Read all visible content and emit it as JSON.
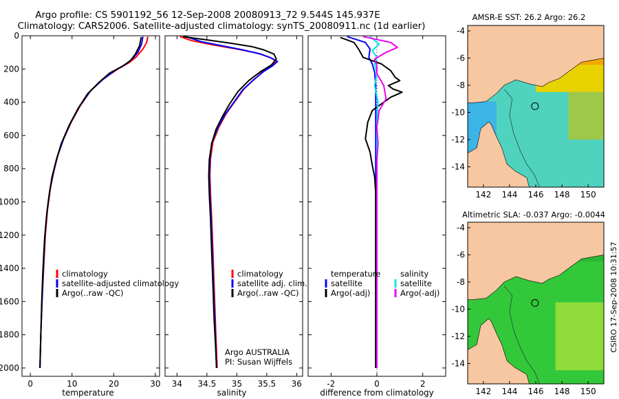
{
  "title_line1": "Argo profile: CS 5901192_56 12-Sep-2008 20080913_72 9.544S 145.937E",
  "title_line2": "Climatology: CARS2006. Satellite-adjusted climatology: synTS_20080911.nc (1d earlier)",
  "credit": "Argo AUSTRALIA",
  "pi": "PI: Susan Wijffels",
  "side_stamp": "CSIRO 17-Sep-2008 10:31:57",
  "colors": {
    "climatology": "#ff0000",
    "satellite": "#0000ff",
    "argo": "#000000",
    "diff_salinity_sat": "#00e5ee",
    "diff_salinity_argo": "#ee00ee",
    "land": "#f7c7a1"
  },
  "chart_data": [
    {
      "type": "line",
      "id": "temperature",
      "xlabel": "temperature",
      "xlim": [
        -2,
        31
      ],
      "xticks": [
        "0",
        "10",
        "20",
        "30"
      ],
      "ylim": [
        2050,
        0
      ],
      "yticks": [
        "0",
        "200",
        "400",
        "600",
        "800",
        "1000",
        "1200",
        "1400",
        "1600",
        "1800",
        "2000"
      ],
      "legend": [
        "climatology",
        "satellite-adjusted climatology",
        "Argo(..raw -QC)"
      ],
      "series": [
        {
          "name": "climatology",
          "color": "#ff0000",
          "points": [
            [
              28.2,
              5
            ],
            [
              27.9,
              40
            ],
            [
              27.0,
              80
            ],
            [
              25.3,
              130
            ],
            [
              23.5,
              165
            ],
            [
              21.0,
              200
            ],
            [
              17.5,
              260
            ],
            [
              14.5,
              330
            ],
            [
              12.0,
              420
            ],
            [
              9.8,
              520
            ],
            [
              8.0,
              620
            ],
            [
              6.6,
              720
            ],
            [
              5.6,
              820
            ],
            [
              4.8,
              920
            ],
            [
              4.1,
              1050
            ],
            [
              3.6,
              1200
            ],
            [
              3.2,
              1400
            ],
            [
              2.8,
              1600
            ],
            [
              2.5,
              1800
            ],
            [
              2.3,
              2000
            ]
          ]
        },
        {
          "name": "satellite-adjusted climatology",
          "color": "#0000ff",
          "points": [
            [
              27.0,
              5
            ],
            [
              26.7,
              50
            ],
            [
              25.8,
              100
            ],
            [
              24.4,
              140
            ],
            [
              23.0,
              170
            ],
            [
              20.5,
              205
            ],
            [
              17.3,
              265
            ],
            [
              14.3,
              335
            ],
            [
              11.8,
              425
            ],
            [
              9.6,
              525
            ],
            [
              7.9,
              625
            ],
            [
              6.5,
              725
            ],
            [
              5.5,
              825
            ],
            [
              4.7,
              925
            ],
            [
              4.0,
              1055
            ],
            [
              3.5,
              1205
            ],
            [
              3.1,
              1405
            ],
            [
              2.8,
              1600
            ],
            [
              2.5,
              1800
            ],
            [
              2.3,
              2000
            ]
          ]
        },
        {
          "name": "Argo(..raw -QC)",
          "color": "#000000",
          "points": [
            [
              26.6,
              8
            ],
            [
              26.2,
              60
            ],
            [
              25.2,
              110
            ],
            [
              24.0,
              150
            ],
            [
              22.0,
              185
            ],
            [
              19.0,
              225
            ],
            [
              16.5,
              280
            ],
            [
              13.7,
              350
            ],
            [
              11.4,
              440
            ],
            [
              9.2,
              545
            ],
            [
              7.4,
              650
            ],
            [
              6.2,
              750
            ],
            [
              5.2,
              850
            ],
            [
              4.5,
              960
            ],
            [
              3.9,
              1080
            ],
            [
              3.4,
              1230
            ],
            [
              3.0,
              1420
            ],
            [
              2.7,
              1620
            ],
            [
              2.5,
              1820
            ],
            [
              2.3,
              2000
            ]
          ]
        }
      ]
    },
    {
      "type": "line",
      "id": "salinity",
      "xlabel": "salinity",
      "xlim": [
        33.8,
        36.1
      ],
      "xticks": [
        "34",
        "34.5",
        "35",
        "35.5",
        "36"
      ],
      "ylim": [
        2050,
        0
      ],
      "legend": [
        "climatology",
        "satellite adj. clim.",
        "Argo(..raw -QC)"
      ],
      "series": [
        {
          "name": "climatology",
          "color": "#ff0000",
          "points": [
            [
              34.05,
              5
            ],
            [
              34.25,
              30
            ],
            [
              34.6,
              55
            ],
            [
              35.0,
              80
            ],
            [
              35.35,
              105
            ],
            [
              35.55,
              130
            ],
            [
              35.65,
              150
            ],
            [
              35.6,
              175
            ],
            [
              35.45,
              210
            ],
            [
              35.3,
              260
            ],
            [
              35.12,
              320
            ],
            [
              34.98,
              390
            ],
            [
              34.82,
              470
            ],
            [
              34.7,
              550
            ],
            [
              34.6,
              640
            ],
            [
              34.56,
              740
            ],
            [
              34.55,
              840
            ],
            [
              34.56,
              950
            ],
            [
              34.58,
              1100
            ],
            [
              34.6,
              1300
            ],
            [
              34.62,
              1500
            ],
            [
              34.64,
              1700
            ],
            [
              34.66,
              1900
            ],
            [
              34.67,
              2000
            ]
          ]
        },
        {
          "name": "satellite adj. clim.",
          "color": "#0000ff",
          "points": [
            [
              34.15,
              5
            ],
            [
              34.4,
              35
            ],
            [
              34.75,
              60
            ],
            [
              35.1,
              85
            ],
            [
              35.4,
              110
            ],
            [
              35.58,
              135
            ],
            [
              35.68,
              155
            ],
            [
              35.6,
              180
            ],
            [
              35.45,
              215
            ],
            [
              35.28,
              265
            ],
            [
              35.1,
              325
            ],
            [
              34.96,
              395
            ],
            [
              34.8,
              475
            ],
            [
              34.68,
              555
            ],
            [
              34.58,
              645
            ],
            [
              34.55,
              745
            ],
            [
              34.54,
              845
            ],
            [
              34.55,
              955
            ],
            [
              34.57,
              1105
            ],
            [
              34.59,
              1305
            ],
            [
              34.61,
              1505
            ],
            [
              34.63,
              1705
            ],
            [
              34.65,
              1905
            ],
            [
              34.66,
              2000
            ]
          ]
        },
        {
          "name": "Argo(..raw -QC)",
          "color": "#000000",
          "points": [
            [
              34.1,
              5
            ],
            [
              34.5,
              25
            ],
            [
              34.9,
              45
            ],
            [
              35.25,
              65
            ],
            [
              35.45,
              85
            ],
            [
              35.62,
              110
            ],
            [
              35.66,
              140
            ],
            [
              35.58,
              175
            ],
            [
              35.4,
              215
            ],
            [
              35.2,
              270
            ],
            [
              35.02,
              335
            ],
            [
              34.88,
              410
            ],
            [
              34.76,
              485
            ],
            [
              34.65,
              565
            ],
            [
              34.58,
              650
            ],
            [
              34.54,
              745
            ],
            [
              34.53,
              845
            ],
            [
              34.54,
              955
            ],
            [
              34.56,
              1105
            ],
            [
              34.58,
              1305
            ],
            [
              34.6,
              1505
            ],
            [
              34.62,
              1705
            ],
            [
              34.65,
              1905
            ],
            [
              34.66,
              2000
            ]
          ]
        }
      ]
    },
    {
      "type": "line",
      "id": "difference",
      "xlabel": "difference from climatology",
      "xlim": [
        -3.0,
        3.0
      ],
      "xticks": [
        "-2",
        "0",
        "2"
      ],
      "ylim": [
        2050,
        0
      ],
      "legend_left": [
        "temperature",
        "satellite",
        "Argo(-adj)"
      ],
      "legend_right": [
        "salinity",
        "satellite",
        "Argo(-adj)"
      ],
      "series": [
        {
          "name": "temperature satellite",
          "color": "#0000ff",
          "width": 2,
          "points": [
            [
              -1.3,
              5
            ],
            [
              -0.5,
              40
            ],
            [
              -0.3,
              80
            ],
            [
              -0.35,
              130
            ],
            [
              -0.2,
              170
            ],
            [
              -0.1,
              220
            ],
            [
              -0.05,
              300
            ],
            [
              -0.05,
              400
            ],
            [
              -0.05,
              500
            ],
            [
              -0.05,
              700
            ],
            [
              -0.05,
              900
            ],
            [
              -0.05,
              1100
            ],
            [
              -0.05,
              1300
            ],
            [
              -0.05,
              1500
            ],
            [
              -0.05,
              1700
            ],
            [
              -0.05,
              1900
            ],
            [
              -0.05,
              2000
            ]
          ]
        },
        {
          "name": "temperature Argo(-adj)",
          "color": "#000000",
          "width": 2,
          "points": [
            [
              -1.6,
              10
            ],
            [
              -1.0,
              40
            ],
            [
              -0.8,
              80
            ],
            [
              -0.6,
              130
            ],
            [
              0.2,
              170
            ],
            [
              0.6,
              210
            ],
            [
              0.8,
              250
            ],
            [
              1.0,
              270
            ],
            [
              0.5,
              300
            ],
            [
              0.7,
              320
            ],
            [
              1.1,
              340
            ],
            [
              0.6,
              370
            ],
            [
              0.3,
              400
            ],
            [
              -0.2,
              450
            ],
            [
              -0.4,
              520
            ],
            [
              -0.5,
              620
            ],
            [
              -0.3,
              700
            ],
            [
              -0.2,
              780
            ],
            [
              -0.1,
              850
            ],
            [
              -0.05,
              950
            ],
            [
              -0.05,
              1100
            ],
            [
              -0.05,
              1300
            ],
            [
              -0.05,
              1500
            ],
            [
              -0.05,
              1700
            ],
            [
              -0.05,
              1900
            ],
            [
              -0.05,
              2000
            ]
          ]
        },
        {
          "name": "salinity satellite",
          "color": "#00e5ee",
          "width": 2,
          "points": [
            [
              -0.3,
              5
            ],
            [
              0.1,
              50
            ],
            [
              -0.2,
              90
            ],
            [
              0.0,
              130
            ],
            [
              -0.1,
              170
            ],
            [
              0.0,
              230
            ],
            [
              -0.1,
              300
            ],
            [
              0.05,
              400
            ],
            [
              0.0,
              500
            ],
            [
              0.0,
              700
            ],
            [
              0.0,
              900
            ],
            [
              0.0,
              1100
            ],
            [
              0.0,
              1300
            ],
            [
              0.0,
              1500
            ],
            [
              0.0,
              1700
            ],
            [
              0.0,
              1900
            ],
            [
              0.0,
              2000
            ]
          ]
        },
        {
          "name": "salinity Argo(-adj)",
          "color": "#ee00ee",
          "width": 2,
          "points": [
            [
              -0.6,
              5
            ],
            [
              0.6,
              40
            ],
            [
              0.9,
              70
            ],
            [
              0.4,
              100
            ],
            [
              -0.1,
              140
            ],
            [
              0.0,
              180
            ],
            [
              0.0,
              230
            ],
            [
              0.3,
              300
            ],
            [
              0.4,
              380
            ],
            [
              0.1,
              450
            ],
            [
              0.0,
              550
            ],
            [
              0.05,
              650
            ],
            [
              0.0,
              750
            ],
            [
              0.0,
              900
            ],
            [
              0.0,
              1100
            ],
            [
              0.0,
              1300
            ],
            [
              0.0,
              1500
            ],
            [
              0.0,
              1700
            ],
            [
              0.0,
              1900
            ],
            [
              0.0,
              2000
            ]
          ]
        }
      ]
    },
    {
      "type": "heatmap",
      "id": "sst_map",
      "title": "AMSR-E SST: 26.2 Argo: 26.2",
      "xlim": [
        140.8,
        151.2
      ],
      "ylim": [
        -15.5,
        -3.6
      ],
      "xticks": [
        "142",
        "144",
        "146",
        "148",
        "150"
      ],
      "yticks": [
        "-4",
        "-6",
        "-8",
        "-10",
        "-12",
        "-14"
      ],
      "argo_position": {
        "lon": 145.937,
        "lat": -9.544
      }
    },
    {
      "type": "heatmap",
      "id": "sla_map",
      "title": "Altimetric SLA: -0.037 Argo: -0.0044",
      "xlim": [
        140.8,
        151.2
      ],
      "ylim": [
        -15.5,
        -3.6
      ],
      "xticks": [
        "142",
        "144",
        "146",
        "148",
        "150"
      ],
      "yticks": [
        "-4",
        "-6",
        "-8",
        "-10",
        "-12",
        "-14"
      ],
      "argo_position": {
        "lon": 145.937,
        "lat": -9.544
      }
    }
  ]
}
